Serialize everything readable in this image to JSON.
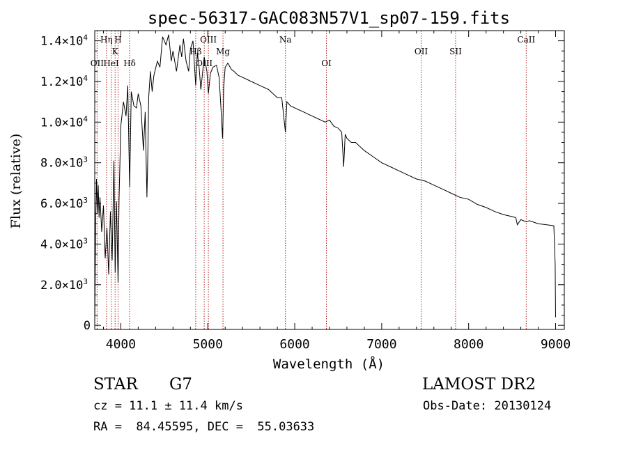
{
  "chart_data": {
    "type": "line",
    "title": "spec-56317-GAC083N57V1_sp07-159.fits",
    "xlabel": "Wavelength (Å)",
    "ylabel": "Flux (relative)",
    "xlim": [
      3700,
      9100
    ],
    "ylim": [
      -200,
      14500
    ],
    "xticks": [
      4000,
      5000,
      6000,
      7000,
      8000,
      9000
    ],
    "yticks": [
      {
        "value": 0,
        "mant": "0",
        "exp": ""
      },
      {
        "value": 2000,
        "mant": "2.0×10",
        "exp": "3"
      },
      {
        "value": 4000,
        "mant": "4.0×10",
        "exp": "3"
      },
      {
        "value": 6000,
        "mant": "6.0×10",
        "exp": "3"
      },
      {
        "value": 8000,
        "mant": "8.0×10",
        "exp": "3"
      },
      {
        "value": 10000,
        "mant": "1.0×10",
        "exp": "4"
      },
      {
        "value": 12000,
        "mant": "1.2×10",
        "exp": "4"
      },
      {
        "value": 14000,
        "mant": "1.4×10",
        "exp": "4"
      }
    ],
    "grid": false,
    "series": [
      {
        "x": [
          3700,
          3710,
          3720,
          3730,
          3740,
          3750,
          3760,
          3780,
          3800,
          3820,
          3840,
          3860,
          3880,
          3900,
          3920,
          3935,
          3950,
          3968,
          3980,
          4000,
          4030,
          4060,
          4080,
          4101,
          4120,
          4150,
          4180,
          4200,
          4230,
          4260,
          4280,
          4300,
          4310,
          4320,
          4340,
          4360,
          4380,
          4420,
          4450,
          4480,
          4520,
          4550,
          4580,
          4600,
          4640,
          4680,
          4700,
          4720,
          4750,
          4780,
          4800,
          4830,
          4861,
          4880,
          4900,
          4920,
          4959,
          4990,
          5007,
          5030,
          5060,
          5100,
          5130,
          5150,
          5170,
          5183,
          5200,
          5230,
          5270,
          5300,
          5350,
          5400,
          5450,
          5500,
          5550,
          5600,
          5650,
          5700,
          5750,
          5800,
          5850,
          5893,
          5910,
          5950,
          6000,
          6050,
          6100,
          6150,
          6200,
          6250,
          6300,
          6350,
          6400,
          6450,
          6500,
          6540,
          6563,
          6580,
          6600,
          6650,
          6700,
          6800,
          6900,
          7000,
          7100,
          7200,
          7300,
          7400,
          7500,
          7600,
          7700,
          7800,
          7900,
          8000,
          8100,
          8200,
          8300,
          8400,
          8500,
          8542,
          8560,
          8600,
          8662,
          8700,
          8800,
          8900,
          8980,
          8995,
          9000
        ],
        "y": [
          0,
          4800,
          7200,
          5500,
          6900,
          5300,
          6300,
          4600,
          5900,
          3300,
          4800,
          2500,
          5600,
          3200,
          8100,
          2600,
          6100,
          2100,
          6200,
          9800,
          11000,
          10300,
          11800,
          6800,
          11500,
          10800,
          10700,
          11400,
          10800,
          8600,
          10500,
          6300,
          8200,
          11200,
          12500,
          11500,
          12300,
          13000,
          12700,
          14200,
          13800,
          14300,
          13000,
          13500,
          12500,
          13800,
          13200,
          14100,
          13000,
          12500,
          13600,
          14000,
          11800,
          13400,
          12700,
          11600,
          13200,
          12500,
          11400,
          12400,
          12700,
          12800,
          12200,
          10800,
          9200,
          11700,
          12700,
          12900,
          12600,
          12500,
          12300,
          12200,
          12100,
          12000,
          11900,
          11800,
          11700,
          11600,
          11400,
          11200,
          11200,
          9500,
          11000,
          10800,
          10700,
          10600,
          10500,
          10400,
          10300,
          10200,
          10100,
          10000,
          10100,
          9800,
          9700,
          9500,
          7800,
          9400,
          9200,
          9000,
          9000,
          8600,
          8300,
          8000,
          7800,
          7600,
          7400,
          7200,
          7100,
          6900,
          6700,
          6500,
          6300,
          6200,
          5950,
          5800,
          5600,
          5450,
          5350,
          5300,
          4950,
          5200,
          5100,
          5150,
          5000,
          4950,
          4900,
          3000,
          400
        ]
      }
    ],
    "lines": [
      {
        "label": "OII",
        "wave": 3727,
        "row": 2
      },
      {
        "label": "HeI",
        "wave": 3889,
        "row": 2
      },
      {
        "label": "Hη",
        "wave": 3835,
        "row": 0
      },
      {
        "label": "H",
        "wave": 3968,
        "row": 0
      },
      {
        "label": "K",
        "wave": 3934,
        "row": 1
      },
      {
        "label": "Hδ",
        "wave": 4101,
        "row": 2
      },
      {
        "label": "Hβ",
        "wave": 4861,
        "row": 1
      },
      {
        "label": "OIII",
        "wave": 5007,
        "row": 0
      },
      {
        "label": "OIII",
        "wave": 4959,
        "row": 2
      },
      {
        "label": "Mg",
        "wave": 5175,
        "row": 1
      },
      {
        "label": "Na",
        "wave": 5893,
        "row": 0
      },
      {
        "label": "OI",
        "wave": 6364,
        "row": 2
      },
      {
        "label": "OII",
        "wave": 7454,
        "row": 1
      },
      {
        "label": "SII",
        "wave": 7850,
        "row": 1
      },
      {
        "label": "CaII",
        "wave": 8662,
        "row": 0
      }
    ]
  },
  "info": {
    "object_class": "STAR",
    "subclass": "G7",
    "cz": "cz = 11.1 ± 11.4 km/s",
    "radec": "RA =  84.45595, DEC =  55.03633",
    "survey": "LAMOST DR2",
    "obs_date": "Obs-Date: 20130124"
  },
  "colors": {
    "axis": "#000000",
    "spectrum": "#000000",
    "line_marker": "#b22222"
  }
}
